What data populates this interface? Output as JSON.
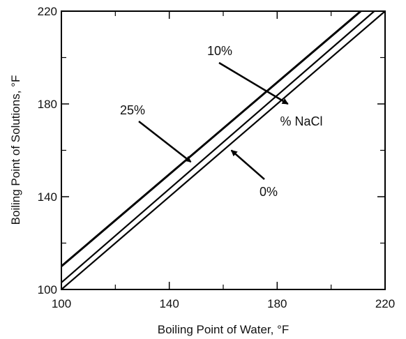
{
  "chart_data": {
    "type": "line",
    "title": "",
    "xlabel": "Boiling Point of Water, °F",
    "ylabel": "Boiling Point of Solutions, °F",
    "xlim": [
      100,
      220
    ],
    "ylim": [
      100,
      220
    ],
    "xticks": [
      100,
      140,
      180,
      220
    ],
    "yticks": [
      100,
      140,
      180,
      220
    ],
    "grid": false,
    "series": [
      {
        "name": "0%",
        "x": [
          100,
          220
        ],
        "y": [
          100,
          220
        ]
      },
      {
        "name": "10%",
        "x": [
          100,
          216
        ],
        "y": [
          103,
          220
        ]
      },
      {
        "name": "25%",
        "x": [
          100,
          211
        ],
        "y": [
          110,
          220
        ]
      }
    ],
    "annotations": [
      {
        "text": "25%",
        "target": [
          148,
          155
        ]
      },
      {
        "text": "10%",
        "target": [
          184,
          180
        ]
      },
      {
        "text": "% NaCl"
      },
      {
        "text": "0%",
        "target": [
          163,
          160
        ]
      }
    ]
  }
}
